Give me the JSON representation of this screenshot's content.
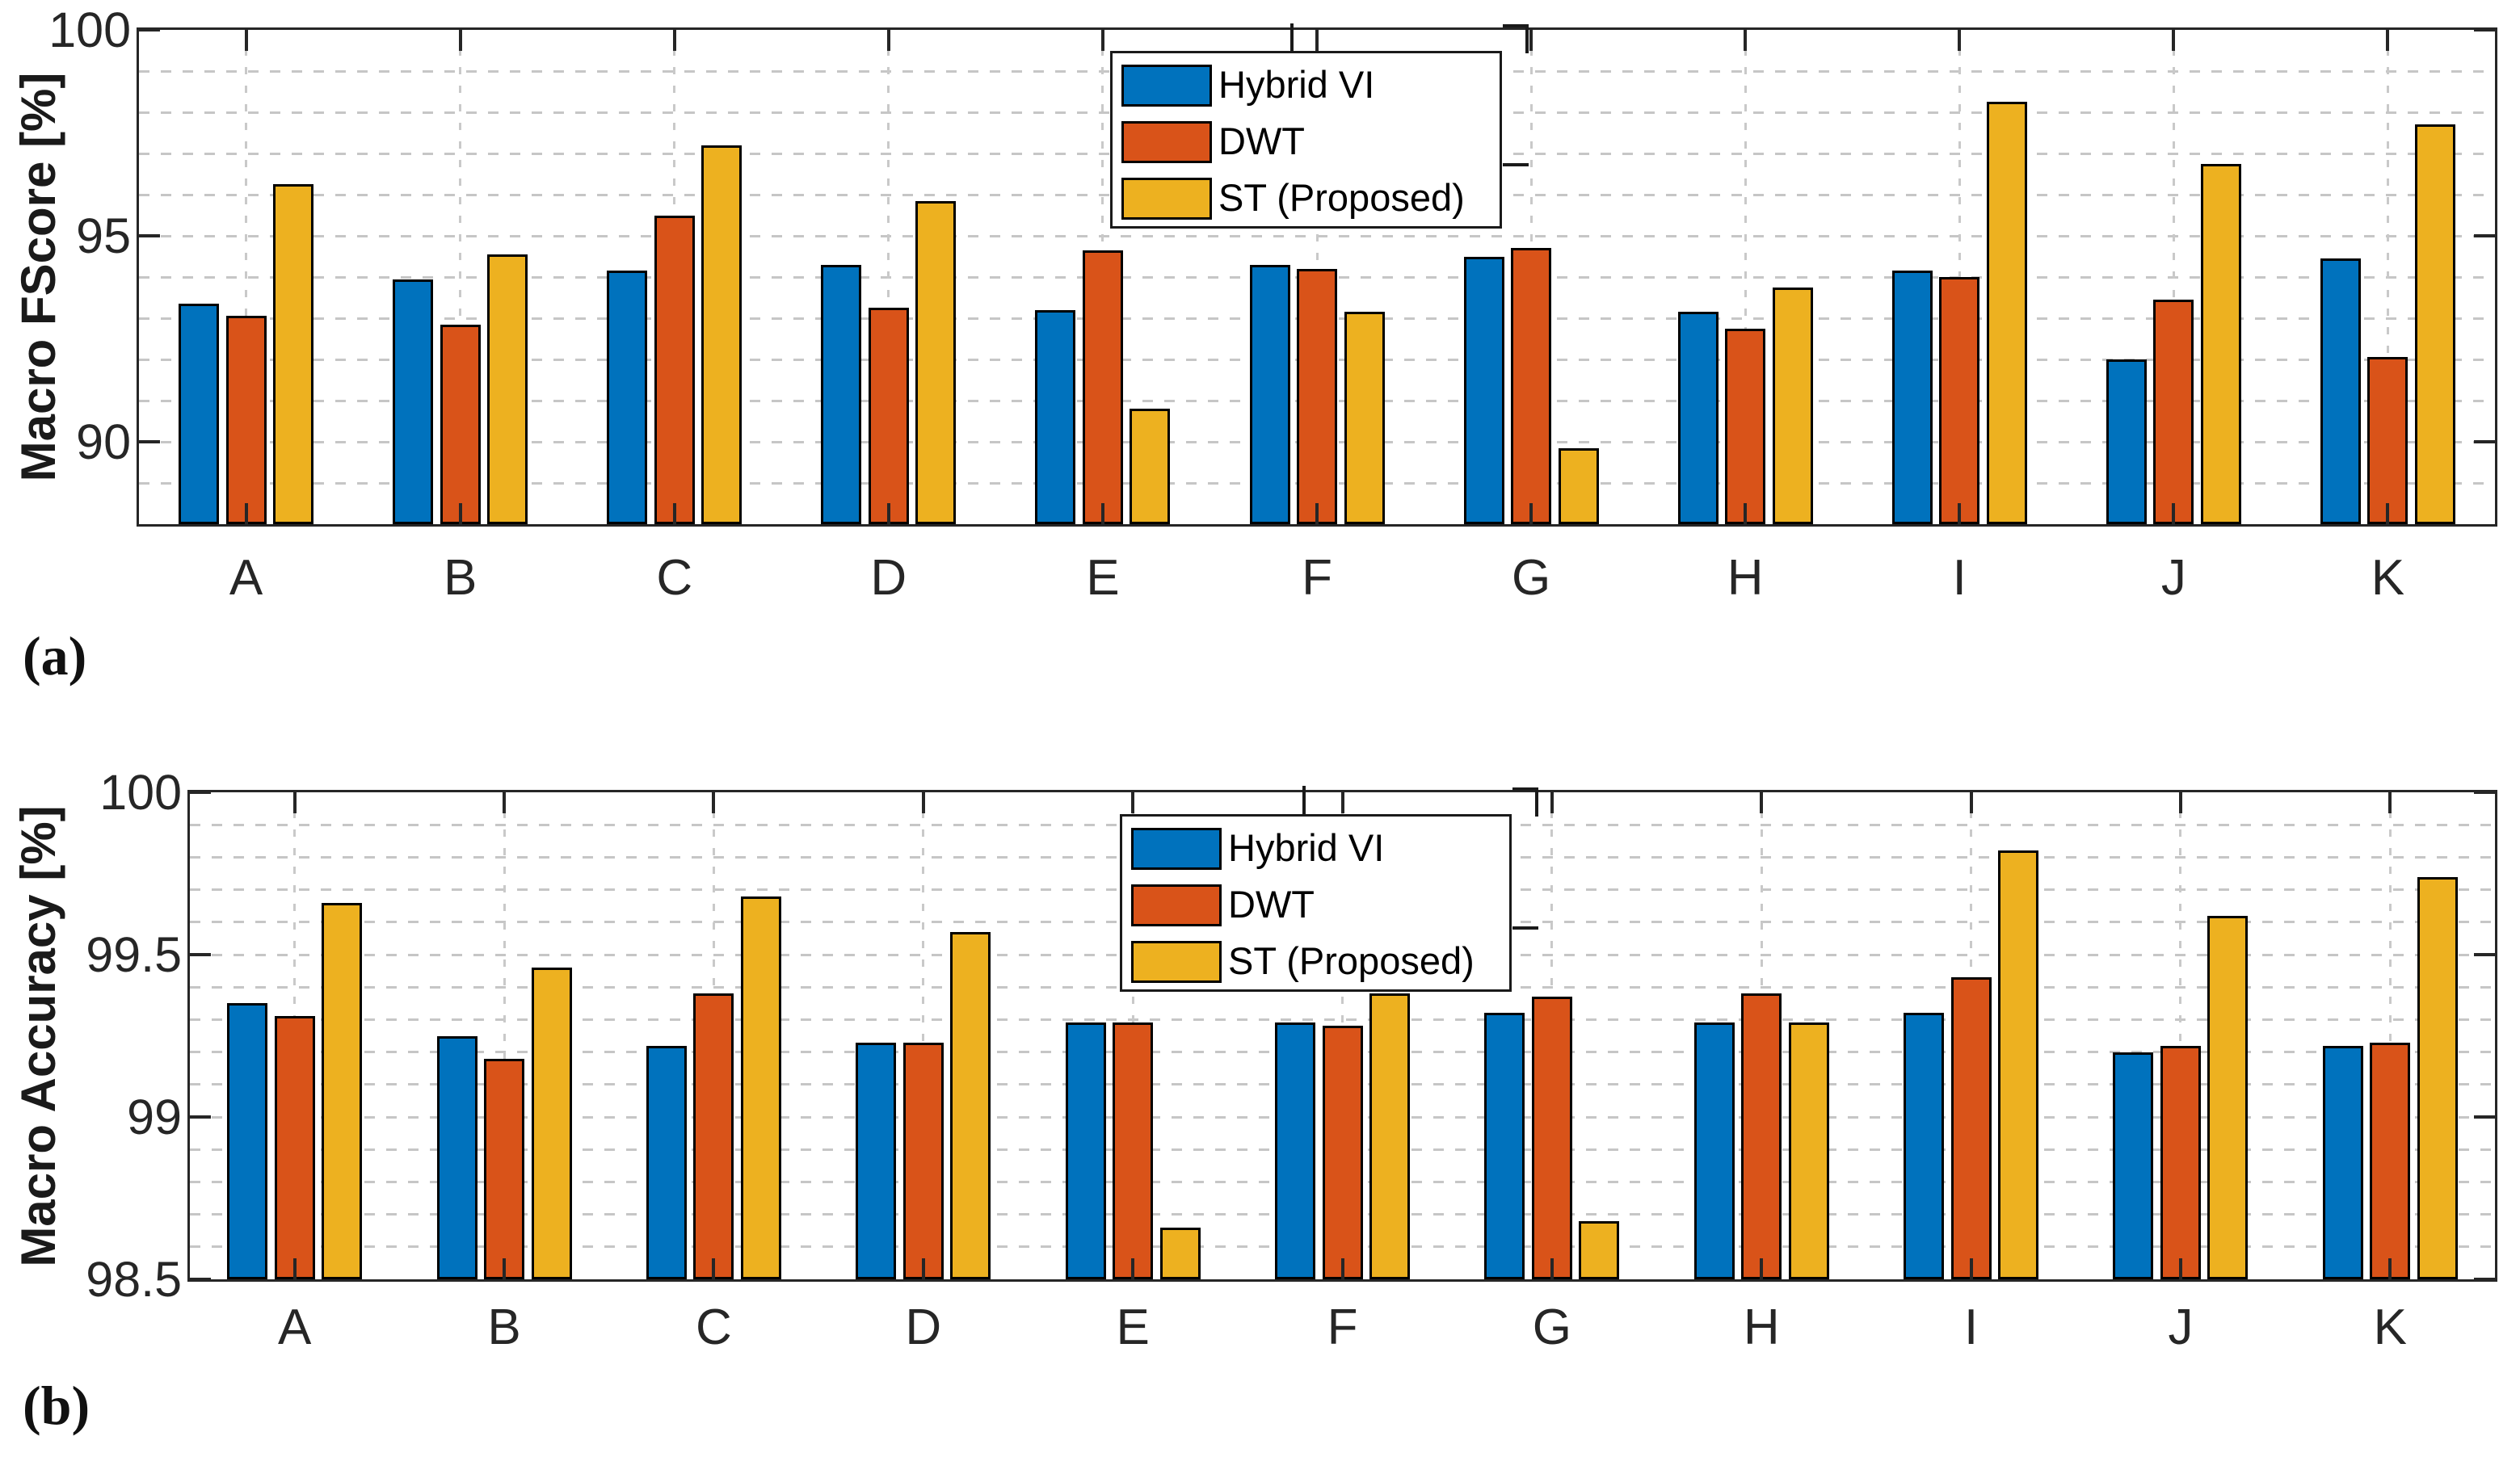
{
  "figure": {
    "background": "#ffffff",
    "captions": [
      {
        "id": "a",
        "label": "(a)"
      },
      {
        "id": "b",
        "label": "(b)"
      }
    ]
  },
  "legend": {
    "items": [
      {
        "label": "Hybrid VI",
        "color": "#0072BD"
      },
      {
        "label": "DWT",
        "color": "#D95319"
      },
      {
        "label": "ST (Proposed)",
        "color": "#EDB120"
      }
    ]
  },
  "chart_data": [
    {
      "id": "a",
      "type": "bar",
      "title": "",
      "ylabel": "Macro FScore [%]",
      "xlabel": "",
      "categories": [
        "A",
        "B",
        "C",
        "D",
        "E",
        "F",
        "G",
        "H",
        "I",
        "J",
        "K"
      ],
      "series": [
        {
          "name": "Hybrid VI",
          "color": "#0072BD",
          "values": [
            93.35,
            93.95,
            94.15,
            94.3,
            93.2,
            94.3,
            94.5,
            93.15,
            94.15,
            92.0,
            94.45
          ]
        },
        {
          "name": "DWT",
          "color": "#D95319",
          "values": [
            93.05,
            92.85,
            95.5,
            93.25,
            94.65,
            94.2,
            94.7,
            92.75,
            94.0,
            93.45,
            92.05
          ]
        },
        {
          "name": "ST (Proposed)",
          "color": "#EDB120",
          "values": [
            96.25,
            94.55,
            97.2,
            95.85,
            90.8,
            93.15,
            89.85,
            93.75,
            98.25,
            96.75,
            97.7
          ]
        }
      ],
      "ylim": [
        88,
        100
      ],
      "yticks": [
        90,
        95,
        100
      ],
      "ytick_labels": [
        "90",
        "95",
        "100"
      ],
      "minor_grid_step": 1,
      "grid": true,
      "legend_position": "upper center-left"
    },
    {
      "id": "b",
      "type": "bar",
      "title": "",
      "ylabel": "Macro Accuracy [%]",
      "xlabel": "",
      "categories": [
        "A",
        "B",
        "C",
        "D",
        "E",
        "F",
        "G",
        "H",
        "I",
        "J",
        "K"
      ],
      "series": [
        {
          "name": "Hybrid VI",
          "color": "#0072BD",
          "values": [
            99.35,
            99.25,
            99.22,
            99.23,
            99.29,
            99.29,
            99.32,
            99.29,
            99.32,
            99.2,
            99.22
          ]
        },
        {
          "name": "DWT",
          "color": "#D95319",
          "values": [
            99.31,
            99.18,
            99.38,
            99.23,
            99.29,
            99.28,
            99.37,
            99.38,
            99.43,
            99.22,
            99.23
          ]
        },
        {
          "name": "ST (Proposed)",
          "color": "#EDB120",
          "values": [
            99.66,
            99.46,
            99.68,
            99.57,
            98.66,
            99.38,
            98.68,
            99.29,
            99.82,
            99.62,
            99.74
          ]
        }
      ],
      "ylim": [
        98.5,
        100
      ],
      "yticks": [
        98.5,
        99,
        99.5,
        100
      ],
      "ytick_labels": [
        "98.5",
        "99",
        "99.5",
        "100"
      ],
      "minor_grid_step": 0.1,
      "grid": true,
      "legend_position": "upper center-left"
    }
  ]
}
